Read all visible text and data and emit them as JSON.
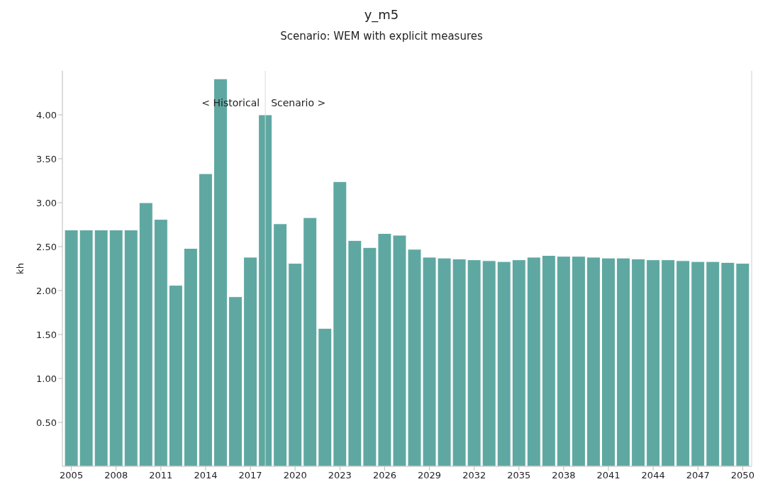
{
  "chart_data": {
    "type": "bar",
    "title": "y_m5",
    "subtitle": "Scenario: WEM with explicit measures",
    "ylabel": "kh",
    "x": [
      2005,
      2006,
      2007,
      2008,
      2009,
      2010,
      2011,
      2012,
      2013,
      2014,
      2015,
      2016,
      2017,
      2018,
      2019,
      2020,
      2021,
      2022,
      2023,
      2024,
      2025,
      2026,
      2027,
      2028,
      2029,
      2030,
      2031,
      2032,
      2033,
      2034,
      2035,
      2036,
      2037,
      2038,
      2039,
      2040,
      2041,
      2042,
      2043,
      2044,
      2045,
      2046,
      2047,
      2048,
      2049,
      2050
    ],
    "values": [
      2.69,
      2.69,
      2.69,
      2.69,
      2.69,
      3.0,
      2.81,
      2.06,
      2.48,
      3.33,
      4.41,
      1.93,
      2.38,
      4.0,
      2.76,
      2.31,
      2.83,
      1.57,
      3.24,
      2.57,
      2.49,
      2.65,
      2.63,
      2.47,
      2.38,
      2.37,
      2.36,
      2.35,
      2.34,
      2.33,
      2.35,
      2.38,
      2.4,
      2.39,
      2.39,
      2.38,
      2.37,
      2.37,
      2.36,
      2.35,
      2.35,
      2.34,
      2.33,
      2.33,
      2.32,
      2.31
    ],
    "color": "#5fa8a2",
    "xlim": [
      2004.4,
      2050.6
    ],
    "xticks": [
      2005,
      2008,
      2011,
      2014,
      2017,
      2020,
      2023,
      2026,
      2029,
      2032,
      2035,
      2038,
      2041,
      2044,
      2047,
      2050
    ],
    "ylim": [
      0,
      4.5
    ],
    "yticks": [
      {
        "value": 0.5,
        "label": "0.50"
      },
      {
        "value": 1,
        "label": "1.00"
      },
      {
        "value": 1.5,
        "label": "1.50"
      },
      {
        "value": 2,
        "label": "2.00"
      },
      {
        "value": 2.5,
        "label": "2.50"
      },
      {
        "value": 3,
        "label": "3.00"
      },
      {
        "value": 3.5,
        "label": "3.50"
      },
      {
        "value": 4,
        "label": "4.00"
      }
    ],
    "ref_lines": [
      {
        "axis": "x",
        "value": 2018,
        "color": "#d9d9d9"
      }
    ],
    "annotations": [
      "< Historical",
      "Scenario >"
    ]
  }
}
